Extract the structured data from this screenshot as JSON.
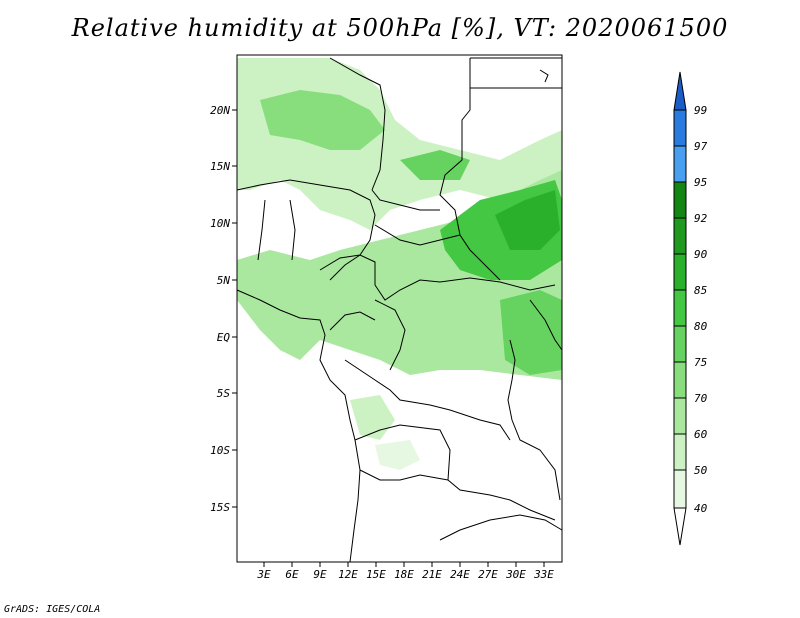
{
  "title": "Relative humidity at 500hPa [%], VT: 2020061500",
  "credit": "GrADS: IGES/COLA",
  "map": {
    "lat_labels": [
      "20N",
      "15N",
      "10N",
      "5N",
      "EQ",
      "5S",
      "10S",
      "15S"
    ],
    "lon_labels": [
      "3E",
      "6E",
      "9E",
      "12E",
      "15E",
      "18E",
      "21E",
      "24E",
      "27E",
      "30E",
      "33E"
    ]
  },
  "colorbar": {
    "levels": [
      "40",
      "50",
      "60",
      "70",
      "75",
      "80",
      "85",
      "90",
      "92",
      "95",
      "97",
      "99"
    ],
    "colors": [
      "#ffffff",
      "#e6f8e1",
      "#ccf2c4",
      "#aae8a0",
      "#88dd7d",
      "#66d25f",
      "#44c742",
      "#2ab02a",
      "#1f9a1f",
      "#148614",
      "#4aa0f0",
      "#2a7be0",
      "#1a5cc8"
    ]
  },
  "legend_colors": {
    "land_outline": "#000000",
    "frame": "#000000"
  }
}
